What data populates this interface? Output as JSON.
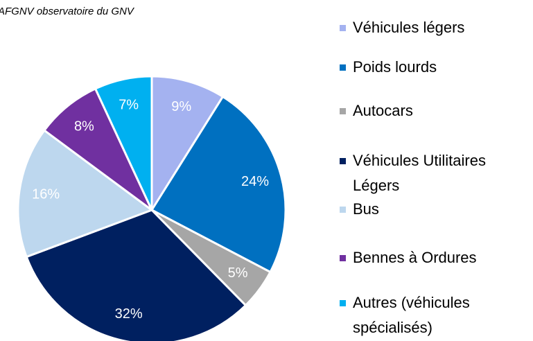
{
  "chart_data": {
    "type": "pie",
    "title": "AFGNV observatoire du GNV",
    "categories": [
      "Véhicules légers",
      "Poids lourds",
      "Autocars",
      "Véhicules Utilitaires Légers",
      "Bus",
      "Bennes à Ordures",
      "Autres (véhicules spécialisés)"
    ],
    "values": [
      9,
      24,
      5,
      32,
      16,
      8,
      7
    ],
    "value_labels": [
      "9%",
      "24%",
      "5%",
      "32%",
      "16%",
      "8%",
      "7%"
    ],
    "colors": [
      "#a4b2f0",
      "#0070c0",
      "#a6a6a6",
      "#002060",
      "#bdd7ee",
      "#7030a0",
      "#00b0f0"
    ],
    "legend": "right"
  }
}
